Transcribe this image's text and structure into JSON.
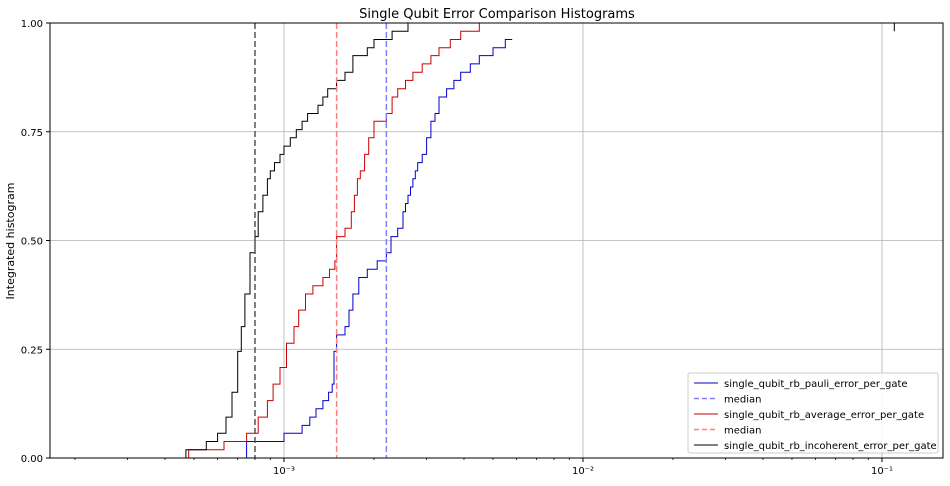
{
  "chart_data": {
    "type": "line",
    "title": "Single Qubit Error Comparison Histograms",
    "xlabel": "",
    "ylabel": "Integrated histogram",
    "xscale": "log",
    "xlim": [
      0.000165,
      0.16
    ],
    "ylim": [
      0,
      1
    ],
    "yticks": [
      0.0,
      0.25,
      0.5,
      0.75,
      1.0
    ],
    "ytick_labels": [
      "0.00",
      "0.25",
      "0.50",
      "0.75",
      "1.00"
    ],
    "xticks_major": [
      0.001,
      0.01,
      0.1
    ],
    "xtick_labels": [
      "10⁻³",
      "10⁻²",
      "10⁻¹"
    ],
    "grid": true,
    "legend_position": "lower right",
    "legend": [
      {
        "label": "single_qubit_rb_pauli_error_per_gate",
        "color": "#0000cc",
        "style": "solid"
      },
      {
        "label": "median",
        "color": "#7f7fff",
        "style": "dashed"
      },
      {
        "label": "single_qubit_rb_average_error_per_gate",
        "color": "#cc0000",
        "style": "solid"
      },
      {
        "label": "median",
        "color": "#ff7f7f",
        "style": "dashed"
      },
      {
        "label": "single_qubit_rb_incoherent_error_per_gate",
        "color": "#000000",
        "style": "solid"
      }
    ],
    "series": [
      {
        "name": "single_qubit_rb_pauli_error_per_gate",
        "color": "#0000cc",
        "x": [
          0.00032,
          0.00075,
          0.001,
          0.00115,
          0.00122,
          0.00128,
          0.00135,
          0.00141,
          0.00145,
          0.00147,
          0.0015,
          0.0016,
          0.00165,
          0.0017,
          0.00178,
          0.0019,
          0.00205,
          0.0022,
          0.00228,
          0.0024,
          0.0025,
          0.00255,
          0.0026,
          0.00265,
          0.0027,
          0.00275,
          0.0028,
          0.0029,
          0.003,
          0.0031,
          0.0032,
          0.0033,
          0.0035,
          0.0037,
          0.0039,
          0.0042,
          0.0045,
          0.005,
          0.0055
        ],
        "y": [
          0.0,
          0.038,
          0.057,
          0.075,
          0.094,
          0.113,
          0.132,
          0.151,
          0.17,
          0.245,
          0.283,
          0.302,
          0.34,
          0.377,
          0.415,
          0.434,
          0.453,
          0.472,
          0.509,
          0.528,
          0.566,
          0.585,
          0.604,
          0.623,
          0.642,
          0.66,
          0.679,
          0.698,
          0.736,
          0.774,
          0.792,
          0.83,
          0.849,
          0.868,
          0.887,
          0.906,
          0.925,
          0.943,
          0.962
        ],
        "x_end": 0.0058
      },
      {
        "name": "single_qubit_rb_average_error_per_gate",
        "color": "#cc0000",
        "x": [
          0.00022,
          0.00048,
          0.00063,
          0.00075,
          0.00082,
          0.00088,
          0.00092,
          0.00097,
          0.00102,
          0.00108,
          0.00112,
          0.00118,
          0.00125,
          0.00135,
          0.00142,
          0.00148,
          0.0015,
          0.0016,
          0.00168,
          0.00172,
          0.00176,
          0.0018,
          0.00186,
          0.00192,
          0.002,
          0.0022,
          0.0023,
          0.0024,
          0.00255,
          0.0027,
          0.0029,
          0.0031,
          0.0033,
          0.0036,
          0.0039,
          0.0045
        ],
        "y": [
          0.0,
          0.019,
          0.038,
          0.057,
          0.094,
          0.132,
          0.17,
          0.208,
          0.264,
          0.302,
          0.34,
          0.377,
          0.396,
          0.415,
          0.434,
          0.453,
          0.509,
          0.528,
          0.566,
          0.604,
          0.642,
          0.66,
          0.698,
          0.736,
          0.774,
          0.792,
          0.83,
          0.849,
          0.868,
          0.887,
          0.906,
          0.925,
          0.943,
          0.962,
          0.981,
          1.0
        ],
        "x_end": 0.0046
      },
      {
        "name": "single_qubit_rb_incoherent_error_per_gate",
        "color": "#000000",
        "x": [
          0.00035,
          0.00047,
          0.00055,
          0.0006,
          0.00064,
          0.00067,
          0.0007,
          0.00072,
          0.00074,
          0.00077,
          0.0008,
          0.00082,
          0.00085,
          0.00088,
          0.0009,
          0.00093,
          0.00097,
          0.001,
          0.00105,
          0.0011,
          0.00115,
          0.0012,
          0.0013,
          0.00135,
          0.0014,
          0.0015,
          0.0016,
          0.0017,
          0.0019,
          0.002,
          0.0023,
          0.0026,
          0.0028,
          0.003,
          0.004,
          0.005,
          0.006,
          0.11
        ],
        "y": [
          0.0,
          0.019,
          0.038,
          0.057,
          0.094,
          0.151,
          0.245,
          0.302,
          0.377,
          0.472,
          0.509,
          0.566,
          0.604,
          0.642,
          0.66,
          0.679,
          0.698,
          0.717,
          0.736,
          0.755,
          0.774,
          0.792,
          0.811,
          0.83,
          0.849,
          0.868,
          0.887,
          0.925,
          0.943,
          0.962,
          0.981,
          1.0,
          1.0,
          1.0,
          1.0,
          1.0,
          1.0,
          0.981
        ],
        "x_end": 0.11
      }
    ],
    "medians": [
      {
        "name": "median",
        "x": 0.0022,
        "color": "#7f7fff"
      },
      {
        "name": "median",
        "x": 0.0015,
        "color": "#ff7f7f"
      },
      {
        "name": "median",
        "x": 0.0008,
        "color": "#555555"
      }
    ]
  }
}
